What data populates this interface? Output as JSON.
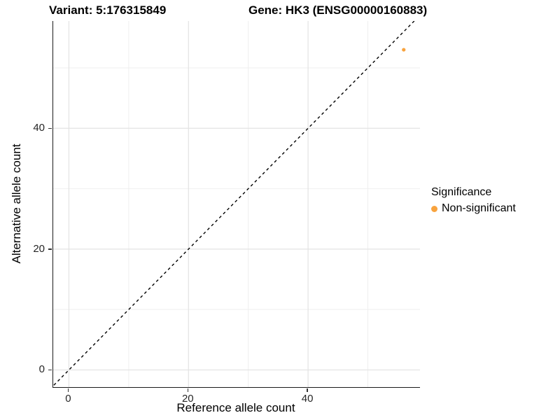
{
  "titles": {
    "variant": "Variant: 5:176315849",
    "gene": "Gene: HK3 (ENSG00000160883)"
  },
  "axes": {
    "x": {
      "title": "Reference allele count",
      "tick_labels": [
        "0",
        "20",
        "40"
      ]
    },
    "y": {
      "title": "Alternative allele count",
      "tick_labels": [
        "0",
        "20",
        "40"
      ]
    }
  },
  "legend": {
    "title": "Significance",
    "items": [
      {
        "label": "Non-significant",
        "color": "#F8A33E",
        "marker": "circle"
      }
    ]
  },
  "colors": {
    "point_orange": "#F8A33E",
    "identity_line": "#000000",
    "axis_line": "#1a1a1a",
    "major_gridline": "#e3e3e3",
    "minor_gridline": "#efefef",
    "background": "#ffffff"
  },
  "chart_data": {
    "type": "scatter",
    "title_left": "Variant: 5:176315849",
    "title_right": "Gene: HK3 (ENSG00000160883)",
    "xlabel": "Reference allele count",
    "ylabel": "Alternative allele count",
    "points": [
      {
        "x": 56,
        "y": 53,
        "series": "Non-significant"
      }
    ],
    "series": [
      {
        "name": "Non-significant",
        "color": "#F8A33E"
      }
    ],
    "x_ticks": [
      0,
      20,
      40
    ],
    "y_ticks": [
      0,
      20,
      40
    ],
    "minor_grid": [
      10,
      30,
      50
    ],
    "xlim": [
      -2.63,
      58.72
    ],
    "ylim": [
      -2.84,
      57.76
    ],
    "grid": true,
    "identity_line": {
      "slope": 1,
      "intercept": 0,
      "style": "dashed",
      "color": "#000000"
    },
    "legend_position": "right",
    "legend_title": "Significance"
  }
}
